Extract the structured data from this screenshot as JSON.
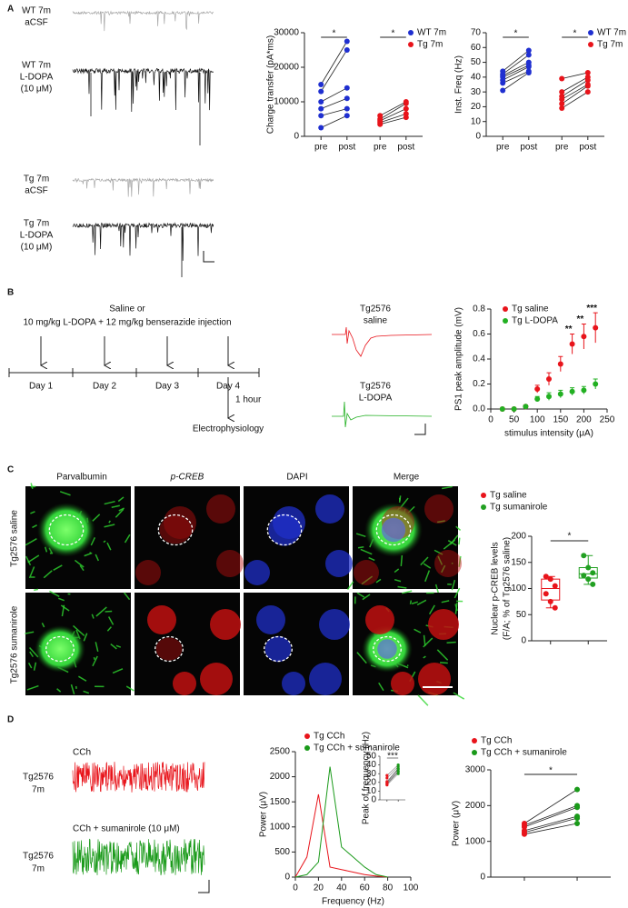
{
  "panels": {
    "A": {
      "letter": "A",
      "traces": [
        [
          "WT 7m",
          "aCSF"
        ],
        [
          "WT 7m",
          "L-DOPA",
          "(10 μM)"
        ],
        [
          "Tg 7m",
          "aCSF"
        ],
        [
          "Tg 7m",
          "L-DOPA",
          "(10 μM)"
        ]
      ]
    },
    "B": {
      "letter": "B",
      "injection": [
        "Saline or",
        "10 mg/kg L-DOPA + 12 mg/kg benserazide injection"
      ],
      "days": [
        "Day 1",
        "Day 2",
        "Day 3",
        "Day 4"
      ],
      "delay": "1 hour",
      "endpoint": "Electrophysiology",
      "traces": [
        [
          "Tg2576",
          "saline"
        ],
        [
          "Tg2576",
          "L-DOPA"
        ]
      ]
    },
    "C": {
      "letter": "C",
      "channels": [
        "Parvalbumin",
        "p-CREB",
        "DAPI",
        "Merge"
      ],
      "rows": [
        "Tg2576 saline",
        "Tg2576 sumanirole"
      ]
    },
    "D": {
      "letter": "D",
      "conditions": [
        "CCh",
        "CCh + sumanirole (10 μM)"
      ],
      "rows": [
        [
          "Tg2576",
          "7m"
        ],
        [
          "Tg2576",
          "7m"
        ]
      ]
    }
  },
  "chart_data": [
    {
      "type": "paired",
      "ylabel": "Charge transfer (pA*ms)",
      "categories": [
        "pre",
        "post",
        "pre",
        "post"
      ],
      "ylim": [
        0,
        30000
      ],
      "yticks": [
        0,
        10000,
        20000,
        30000
      ],
      "legend": "upper right",
      "significance": [
        "*",
        "*"
      ],
      "series": [
        {
          "name": "WT 7m",
          "color": "#1f2fd0",
          "values": [
            [
              2500,
              6000
            ],
            [
              6000,
              8000
            ],
            [
              8000,
              11000
            ],
            [
              10000,
              14000
            ],
            [
              13000,
              25000
            ],
            [
              15000,
              27500
            ]
          ]
        },
        {
          "name": "Tg 7m",
          "color": "#e8141b",
          "values": [
            [
              3500,
              5500
            ],
            [
              4000,
              6500
            ],
            [
              4500,
              8000
            ],
            [
              5000,
              9500
            ],
            [
              6000,
              10000
            ]
          ]
        }
      ]
    },
    {
      "type": "paired",
      "ylabel": "Inst. Freq (Hz)",
      "categories": [
        "pre",
        "post",
        "pre",
        "post"
      ],
      "ylim": [
        0,
        70
      ],
      "yticks": [
        0,
        10,
        20,
        30,
        40,
        50,
        60,
        70
      ],
      "legend": "upper right",
      "significance": [
        "*",
        "*"
      ],
      "series": [
        {
          "name": "WT 7m",
          "color": "#1f2fd0",
          "values": [
            [
              31,
              43
            ],
            [
              36,
              44
            ],
            [
              38,
              47
            ],
            [
              40,
              48
            ],
            [
              41,
              50
            ],
            [
              42,
              55
            ],
            [
              44,
              58
            ]
          ]
        },
        {
          "name": "Tg 7m",
          "color": "#e8141b",
          "values": [
            [
              19,
              30
            ],
            [
              22,
              34
            ],
            [
              25,
              35
            ],
            [
              27,
              38
            ],
            [
              30,
              40
            ],
            [
              39,
              43
            ]
          ]
        }
      ]
    },
    {
      "type": "scatter",
      "xlabel": "stimulus intensity (μA)",
      "ylabel": "PS1 peak amplitude (mV)",
      "x": [
        25,
        50,
        75,
        100,
        125,
        150,
        175,
        200,
        225
      ],
      "xlim": [
        0,
        250
      ],
      "xticks": [
        0,
        50,
        100,
        150,
        200,
        250
      ],
      "ylim": [
        0,
        0.8
      ],
      "yticks": [
        {
          "value": 0,
          "label": "0.0"
        },
        0.2,
        0.4,
        0.6,
        0.8
      ],
      "legend": "upper left",
      "significance": [
        null,
        null,
        null,
        null,
        null,
        null,
        "**",
        "**",
        "***"
      ],
      "series": [
        {
          "name": "Tg saline",
          "color": "#e8141b",
          "values": [
            0,
            0,
            0.02,
            0.16,
            0.24,
            0.36,
            0.52,
            0.58,
            0.65
          ],
          "errors": [
            0,
            0,
            0.01,
            0.03,
            0.05,
            0.06,
            0.08,
            0.1,
            0.12
          ]
        },
        {
          "name": "Tg L-DOPA",
          "color": "#22b022",
          "values": [
            0,
            0,
            0.02,
            0.08,
            0.1,
            0.12,
            0.14,
            0.15,
            0.2
          ],
          "errors": [
            0,
            0,
            0.01,
            0.02,
            0.03,
            0.03,
            0.03,
            0.03,
            0.04
          ]
        }
      ]
    },
    {
      "type": "box",
      "ylabel": [
        "Nuclear p-CREB levels",
        "(F/A; % of Tg2576 saline)"
      ],
      "ylim": [
        0,
        200
      ],
      "yticks": [
        0,
        50,
        100,
        150,
        200
      ],
      "legend": "upper left",
      "significance": "*",
      "series": [
        {
          "name": "Tg saline",
          "color": "#e8141b",
          "points": [
            123,
            118,
            105,
            90,
            75,
            63
          ],
          "box": {
            "min": 63,
            "q1": 78,
            "median": 100,
            "q3": 118,
            "max": 123
          }
        },
        {
          "name": "Tg sumanirole",
          "color": "#22a022",
          "points": [
            163,
            140,
            130,
            125,
            118,
            108
          ],
          "box": {
            "min": 108,
            "q1": 120,
            "median": 128,
            "q3": 140,
            "max": 163
          }
        }
      ]
    },
    {
      "type": "line",
      "xlabel": "Frequency (Hz)",
      "ylabel": "Power (μV)",
      "x": [
        0,
        10,
        20,
        30,
        40,
        50,
        60,
        70,
        80
      ],
      "xlim": [
        0,
        100
      ],
      "xticks": [
        0,
        20,
        40,
        60,
        80,
        100
      ],
      "ylim": [
        0,
        2500
      ],
      "yticks": [
        0,
        500,
        1000,
        1500,
        2000,
        2500
      ],
      "legend": "upper left",
      "series": [
        {
          "name": "Tg CCh",
          "color": "#e8141b",
          "values": [
            0,
            400,
            1650,
            200,
            150,
            100,
            50,
            20,
            0
          ]
        },
        {
          "name": "Tg CCh + sumanirole",
          "color": "#1a9a1a",
          "values": [
            0,
            50,
            300,
            2200,
            600,
            400,
            200,
            50,
            0
          ]
        }
      ]
    },
    {
      "type": "paired",
      "ylabel": "Peak of frequency (Hz)",
      "ylim": [
        0,
        50
      ],
      "yticks": [
        0,
        10,
        20,
        30,
        40,
        50
      ],
      "colors": [
        "#e8141b",
        "#1a9a1a"
      ],
      "significance": [
        "***"
      ],
      "series": [
        {
          "values": [
            [
              17,
              30
            ],
            [
              18,
              32
            ],
            [
              19,
              33
            ],
            [
              20,
              35
            ],
            [
              21,
              36
            ],
            [
              25,
              38
            ],
            [
              28,
              40
            ]
          ]
        }
      ]
    },
    {
      "type": "paired",
      "ylabel": "Power (μV)",
      "ylim": [
        0,
        3000
      ],
      "yticks": [
        0,
        1000,
        2000,
        3000
      ],
      "colors": [
        "#e8141b",
        "#1a9a1a"
      ],
      "legend": [
        "Tg CCh",
        "Tg CCh + sumanirole"
      ],
      "significance": [
        "*"
      ],
      "series": [
        {
          "values": [
            [
              1200,
              1500
            ],
            [
              1250,
              1650
            ],
            [
              1300,
              1700
            ],
            [
              1400,
              1950
            ],
            [
              1450,
              2000
            ],
            [
              1500,
              2450
            ]
          ]
        }
      ]
    }
  ]
}
